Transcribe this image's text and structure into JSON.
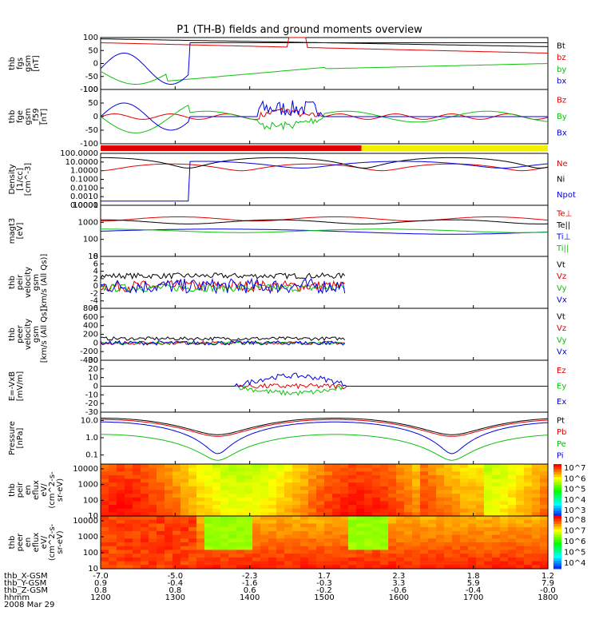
{
  "title": "P1 (TH-B) fields and ground moments overview",
  "colors": {
    "black": "#000000",
    "red": "#e00000",
    "green": "#10c010",
    "blue": "#0000e0",
    "yellow": "#f0f000"
  },
  "chart_data": [
    {
      "type": "line",
      "id": "fgs",
      "ylabel": [
        "thb",
        "fgs",
        "gsm",
        "[nT]"
      ],
      "yticks": [
        "100",
        "50",
        "0",
        "-50",
        "-100"
      ],
      "ylim": [
        -100,
        100
      ],
      "scale": "linear",
      "legend": [
        {
          "name": "Bt",
          "color": "black"
        },
        {
          "name": "bz",
          "color": "red"
        },
        {
          "name": "by",
          "color": "green"
        },
        {
          "name": "bx",
          "color": "blue"
        }
      ]
    },
    {
      "type": "line",
      "id": "fgs_sm",
      "ylabel": [
        "thb",
        "fge",
        "gsm",
        "_f59",
        "[nT]"
      ],
      "yticks": [
        "100",
        "50",
        "0",
        "-50",
        "-100"
      ],
      "ylim": [
        -100,
        100
      ],
      "scale": "linear",
      "legend": [
        {
          "name": "Bz",
          "color": "red"
        },
        {
          "name": "By",
          "color": "green"
        },
        {
          "name": "Bx",
          "color": "blue"
        }
      ]
    },
    {
      "type": "bar",
      "id": "mode_bar",
      "segments": [
        {
          "from": 1200,
          "to": 1530,
          "color": "red"
        },
        {
          "from": 1530,
          "to": 1800,
          "color": "yellow"
        }
      ]
    },
    {
      "type": "line",
      "id": "density",
      "ylabel": [
        "Density",
        "[1/cc]",
        "[cm^-3]"
      ],
      "yticks": [
        "100.0000",
        "10.0000",
        "1.0000",
        "0.1000",
        "0.0100",
        "0.0010",
        "0.0001"
      ],
      "ylim": [
        0.0001,
        100
      ],
      "scale": "log",
      "legend": [
        {
          "name": "Ne",
          "color": "red"
        },
        {
          "name": "Ni",
          "color": "black"
        },
        {
          "name": "Npot",
          "color": "blue"
        }
      ]
    },
    {
      "type": "line",
      "id": "temp",
      "ylabel": [
        "magt3",
        "[eV]"
      ],
      "yticks": [
        "10000",
        "1000",
        "100",
        "10"
      ],
      "ylim": [
        10,
        10000
      ],
      "scale": "log",
      "legend": [
        {
          "name": "Te⊥",
          "color": "red"
        },
        {
          "name": "Te||",
          "color": "black"
        },
        {
          "name": "Ti⊥",
          "color": "blue"
        },
        {
          "name": "Ti||",
          "color": "green"
        }
      ]
    },
    {
      "type": "line",
      "id": "peir_vel",
      "ylabel": [
        "thb",
        "peir",
        "velocity",
        "gsm",
        "[km/s (All Qs)]"
      ],
      "yticks": [
        "8",
        "6",
        "4",
        "2",
        "0",
        "-2",
        "-4",
        "-6"
      ],
      "ylim": [
        -6,
        8
      ],
      "scale": "linear",
      "legend": [
        {
          "name": "Vt",
          "color": "black"
        },
        {
          "name": "Vz",
          "color": "red"
        },
        {
          "name": "Vy",
          "color": "green"
        },
        {
          "name": "Vx",
          "color": "blue"
        }
      ]
    },
    {
      "type": "line",
      "id": "peer_vel",
      "ylabel": [
        "thb",
        "peer",
        "velocity",
        "gsm",
        "[km/s (All Qs)]"
      ],
      "yticks": [
        "800",
        "600",
        "400",
        "200",
        "0",
        "-200",
        "-400"
      ],
      "ylim": [
        -400,
        800
      ],
      "scale": "linear",
      "legend": [
        {
          "name": "Vt",
          "color": "black"
        },
        {
          "name": "Vz",
          "color": "red"
        },
        {
          "name": "Vy",
          "color": "green"
        },
        {
          "name": "Vx",
          "color": "blue"
        }
      ]
    },
    {
      "type": "line",
      "id": "efield",
      "ylabel": [
        "E=-VxB",
        "[mV/m]"
      ],
      "yticks": [
        "30",
        "20",
        "10",
        "0",
        "-10",
        "-20",
        "-30"
      ],
      "ylim": [
        -30,
        30
      ],
      "scale": "linear",
      "legend": [
        {
          "name": "Ez",
          "color": "red"
        },
        {
          "name": "Ey",
          "color": "green"
        },
        {
          "name": "Ex",
          "color": "blue"
        }
      ]
    },
    {
      "type": "line",
      "id": "pressure",
      "ylabel": [
        "Pressure",
        "[nPa]"
      ],
      "yticks": [
        "10.0",
        "1.0",
        "0.1"
      ],
      "ylim": [
        0.03,
        30
      ],
      "scale": "log",
      "legend": [
        {
          "name": "Pt",
          "color": "black"
        },
        {
          "name": "Pb",
          "color": "red"
        },
        {
          "name": "Pe",
          "color": "green"
        },
        {
          "name": "Pi",
          "color": "blue"
        }
      ]
    },
    {
      "type": "heatmap",
      "id": "ion_spec",
      "ylabel": [
        "thb",
        "peir",
        "en",
        "eflux",
        "eV/",
        "(cm^2-s-",
        "sr-eV)"
      ],
      "yticks": [
        "10000",
        "1000",
        "100",
        "10"
      ],
      "ylim": [
        10,
        20000
      ],
      "scale": "log",
      "colorbar": [
        "10^7",
        "10^6",
        "10^5",
        "10^4",
        "10^3"
      ]
    },
    {
      "type": "heatmap",
      "id": "ele_spec",
      "ylabel": [
        "thb",
        "peer",
        "en",
        "eflux",
        "eV/",
        "(cm^2-s-",
        "sr-eV)"
      ],
      "yticks": [
        "10000",
        "1000",
        "100",
        "10"
      ],
      "ylim": [
        10,
        20000
      ],
      "scale": "log",
      "colorbar": [
        "10^8",
        "10^7",
        "10^6",
        "10^5",
        "10^4"
      ]
    }
  ],
  "x_axis": {
    "rows": [
      {
        "label": "thb_X-GSM",
        "values": [
          "-7.0",
          "-5.0",
          "-2.3",
          "1.7",
          "2.3",
          "1.8",
          "1.2"
        ]
      },
      {
        "label": "thb_Y-GSM",
        "values": [
          "0.9",
          "-0.4",
          "-1.6",
          "-0.3",
          "3.3",
          "5.9",
          "7.9"
        ]
      },
      {
        "label": "thb_Z-GSM",
        "values": [
          "0.8",
          "0.8",
          "0.6",
          "-0.2",
          "-0.6",
          "-0.4",
          "-0.0"
        ]
      },
      {
        "label": "hhmm",
        "values": [
          "1200",
          "1300",
          "1400",
          "1500",
          "1600",
          "1700",
          "1800"
        ]
      }
    ],
    "date": "2008 Mar 29"
  }
}
